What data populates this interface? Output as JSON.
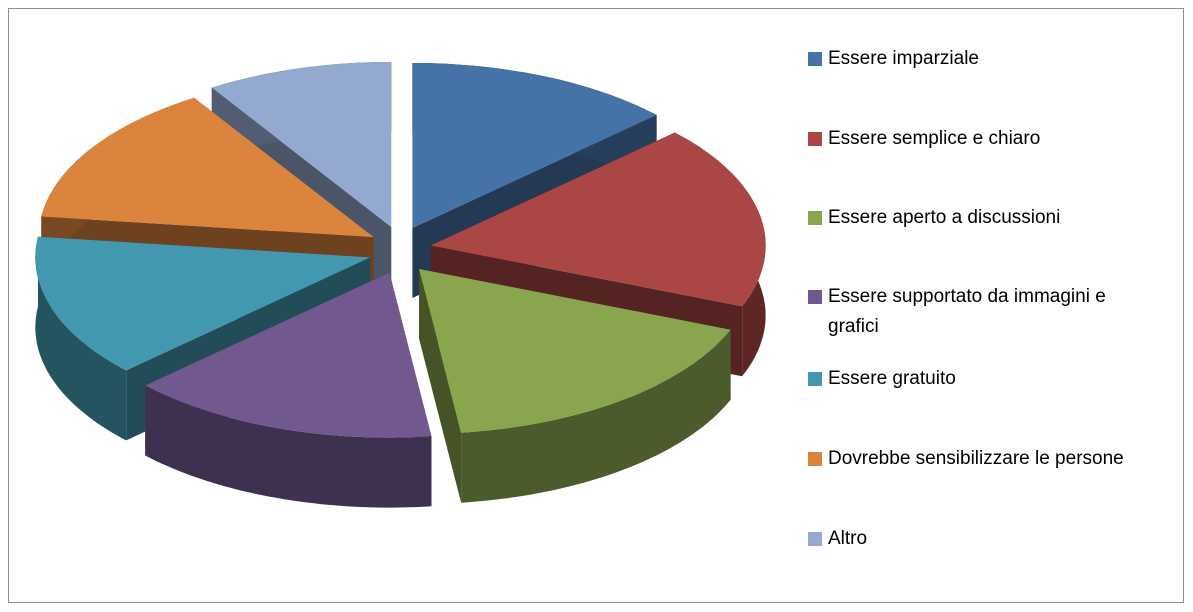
{
  "chart_data": {
    "type": "pie",
    "categories": [
      "Essere imparziale",
      "Essere semplice e chiaro",
      "Essere aperto a discussioni",
      "Essere supportato da immagini e grafici",
      "Essere gratuito",
      "Dovrebbe sensibilizzare le persone",
      "Altro"
    ],
    "values": [
      13,
      18,
      17,
      15,
      14,
      14,
      9
    ],
    "colors": [
      "#4572a7",
      "#aa4643",
      "#89a54e",
      "#71588f",
      "#4198af",
      "#db843d",
      "#93a9cf"
    ],
    "legend": "right",
    "exploded": true,
    "three_d": true
  }
}
